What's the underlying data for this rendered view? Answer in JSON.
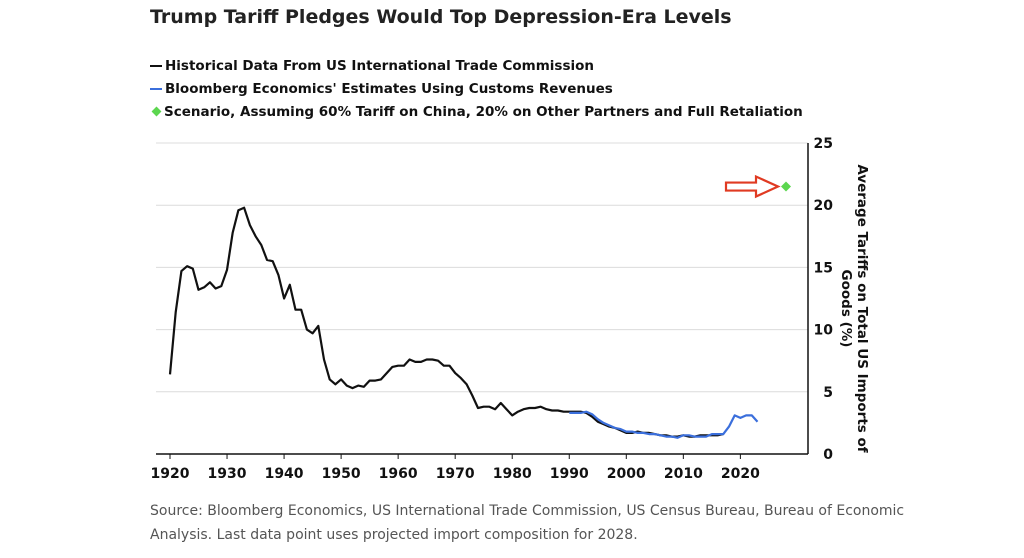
{
  "chart_data": {
    "type": "line",
    "title": "Trump Tariff Pledges Would Top Depression-Era Levels",
    "ylabel": "Average Tariffs on Total US Imports of Goods (%)",
    "xlabel": "",
    "xlim": [
      1920,
      2029
    ],
    "ylim": [
      0,
      25
    ],
    "x_ticks": [
      1920,
      1930,
      1940,
      1950,
      1960,
      1970,
      1980,
      1990,
      2000,
      2010,
      2020
    ],
    "y_ticks": [
      0,
      5,
      10,
      15,
      20,
      25
    ],
    "grid": "horizontal",
    "legend_position": "top-left",
    "series": [
      {
        "name": "Historical Data From US International Trade Commission",
        "color": "#111111",
        "x": [
          1920,
          1921,
          1922,
          1923,
          1924,
          1925,
          1926,
          1927,
          1928,
          1929,
          1930,
          1931,
          1932,
          1933,
          1934,
          1935,
          1936,
          1937,
          1938,
          1939,
          1940,
          1941,
          1942,
          1943,
          1944,
          1945,
          1946,
          1947,
          1948,
          1949,
          1950,
          1951,
          1952,
          1953,
          1954,
          1955,
          1956,
          1957,
          1958,
          1959,
          1960,
          1961,
          1962,
          1963,
          1964,
          1965,
          1966,
          1967,
          1968,
          1969,
          1970,
          1971,
          1972,
          1973,
          1974,
          1975,
          1976,
          1977,
          1978,
          1979,
          1980,
          1981,
          1982,
          1983,
          1984,
          1985,
          1986,
          1987,
          1988,
          1989,
          1990,
          1991,
          1992,
          1993,
          1994,
          1995,
          1996,
          1997,
          1998,
          1999,
          2000,
          2001,
          2002,
          2003,
          2004,
          2005,
          2006,
          2007,
          2008,
          2009,
          2010,
          2011,
          2012,
          2013,
          2014,
          2015,
          2016,
          2017
        ],
        "values": [
          6.4,
          11.4,
          14.7,
          15.1,
          14.9,
          13.2,
          13.4,
          13.8,
          13.3,
          13.5,
          14.8,
          17.8,
          19.6,
          19.8,
          18.4,
          17.5,
          16.8,
          15.6,
          15.5,
          14.4,
          12.5,
          13.6,
          11.6,
          11.6,
          10.0,
          9.7,
          10.3,
          7.6,
          6.0,
          5.6,
          6.0,
          5.5,
          5.3,
          5.5,
          5.4,
          5.9,
          5.9,
          6.0,
          6.5,
          7.0,
          7.1,
          7.1,
          7.6,
          7.4,
          7.4,
          7.6,
          7.6,
          7.5,
          7.1,
          7.1,
          6.5,
          6.1,
          5.6,
          4.7,
          3.7,
          3.8,
          3.8,
          3.6,
          4.1,
          3.6,
          3.1,
          3.4,
          3.6,
          3.7,
          3.7,
          3.8,
          3.6,
          3.5,
          3.5,
          3.4,
          3.4,
          3.4,
          3.4,
          3.3,
          3.0,
          2.6,
          2.4,
          2.2,
          2.1,
          1.9,
          1.7,
          1.7,
          1.8,
          1.7,
          1.7,
          1.6,
          1.5,
          1.5,
          1.4,
          1.4,
          1.5,
          1.4,
          1.4,
          1.5,
          1.5,
          1.5,
          1.5,
          1.6
        ]
      },
      {
        "name": "Bloomberg Economics' Estimates Using Customs Revenues",
        "color": "#3b6fdc",
        "x": [
          1990,
          1991,
          1992,
          1993,
          1994,
          1995,
          1996,
          1997,
          1998,
          1999,
          2000,
          2001,
          2002,
          2003,
          2004,
          2005,
          2006,
          2007,
          2008,
          2009,
          2010,
          2011,
          2012,
          2013,
          2014,
          2015,
          2016,
          2017,
          2018,
          2019,
          2020,
          2021,
          2022,
          2023
        ],
        "values": [
          3.3,
          3.3,
          3.3,
          3.4,
          3.2,
          2.8,
          2.5,
          2.3,
          2.1,
          2.0,
          1.8,
          1.8,
          1.7,
          1.7,
          1.6,
          1.6,
          1.5,
          1.4,
          1.4,
          1.3,
          1.5,
          1.5,
          1.4,
          1.4,
          1.4,
          1.6,
          1.6,
          1.6,
          2.2,
          3.1,
          2.9,
          3.1,
          3.1,
          2.6
        ]
      },
      {
        "name": "Scenario, Assuming 60% Tariff on China, 20% on Other Partners and Full Retaliation",
        "color": "#5cd64f",
        "marker": "diamond",
        "x": [
          2028
        ],
        "values": [
          21.5
        ]
      }
    ],
    "annotations": [
      {
        "type": "arrow",
        "color": "#e03a22",
        "points_to_series": 2
      }
    ]
  },
  "source_text": "Source: Bloomberg Economics, US International Trade Commission, US Census Bureau, Bureau of Economic Analysis. Last data point uses projected import composition for 2028."
}
